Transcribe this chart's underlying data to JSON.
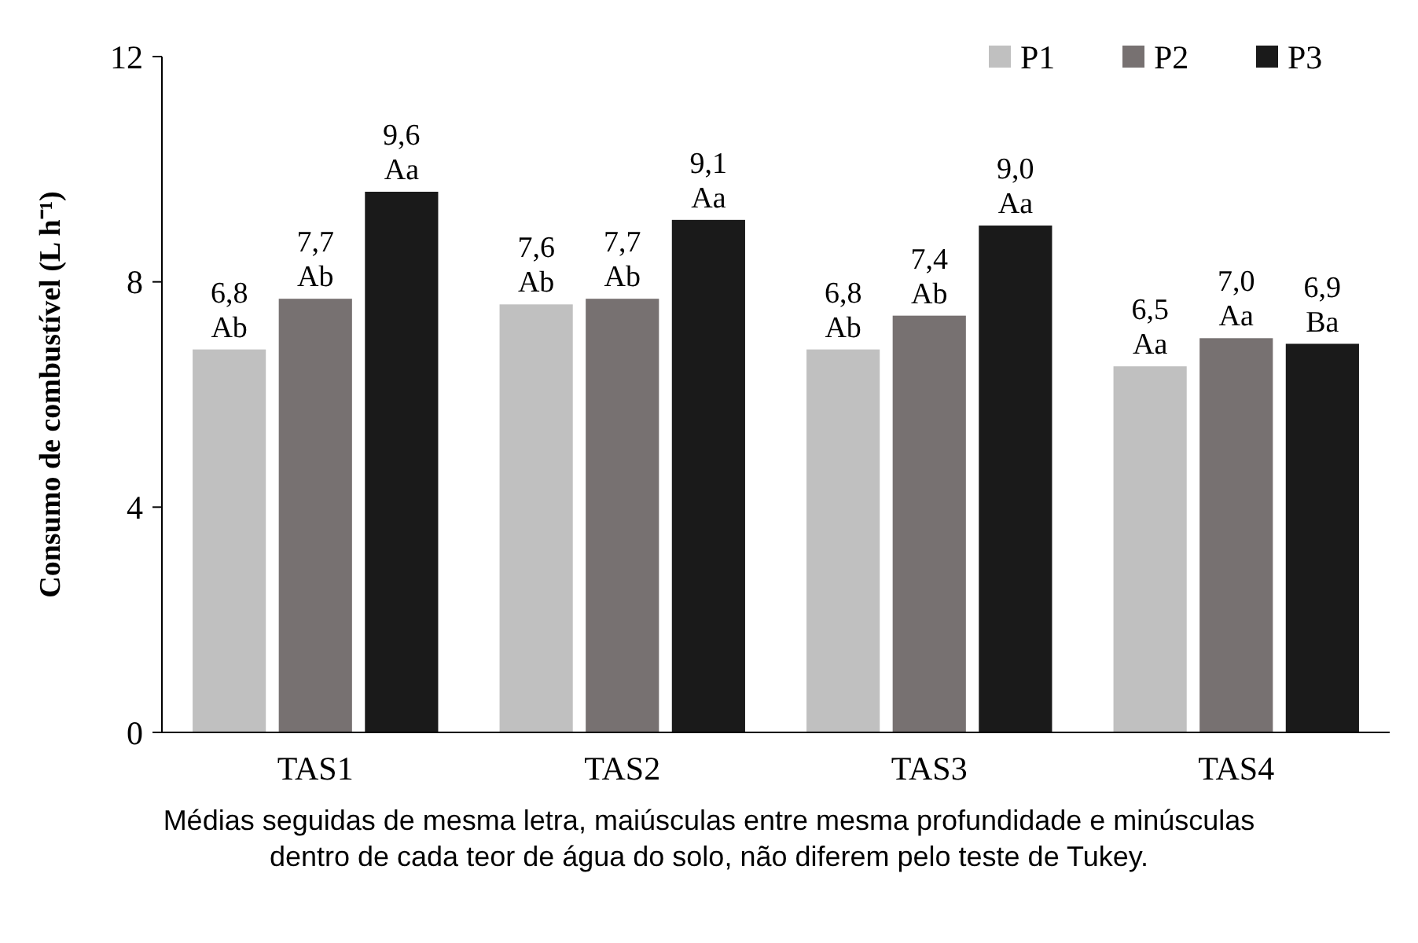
{
  "chart_data": {
    "type": "bar",
    "ylabel": "Consumo de combustível (L h⁻¹)",
    "categories": [
      "TAS1",
      "TAS2",
      "TAS3",
      "TAS4"
    ],
    "series": [
      {
        "name": "P1",
        "color": "#c0c0c0",
        "values": [
          6.8,
          7.6,
          6.8,
          6.5
        ],
        "value_labels": [
          "6,8\nAb",
          "7,6\nAb",
          "6,8\nAb",
          "6,5\nAa"
        ]
      },
      {
        "name": "P2",
        "color": "#777171",
        "values": [
          7.7,
          7.7,
          7.4,
          7.0
        ],
        "value_labels": [
          "7,7\nAb",
          "7,7\nAb",
          "7,4\nAb",
          "7,0\nAa"
        ]
      },
      {
        "name": "P3",
        "color": "#1a1a1a",
        "values": [
          9.6,
          9.1,
          9.0,
          6.9
        ],
        "value_labels": [
          "9,6\nAa",
          "9,1\nAa",
          "9,0\nAa",
          "6,9\nBa"
        ]
      }
    ],
    "ylim": [
      0,
      12
    ],
    "yticks": [
      0,
      4,
      8,
      12
    ],
    "grid": false,
    "legend": "top right",
    "annotations": [
      "Médias seguidas de mesma letra, maiúsculas entre mesma profundidade e minúsculas dentro de cada teor de água do solo, não diferem pelo teste de Tukey."
    ]
  }
}
